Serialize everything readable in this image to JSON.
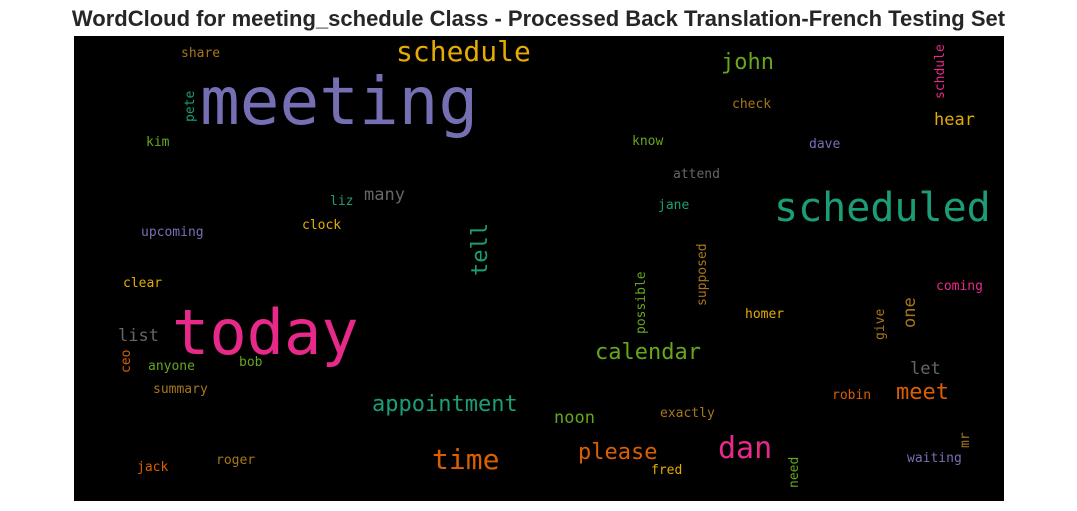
{
  "title": "WordCloud for meeting_schedule Class - Processed Back Translation-French Testing Set",
  "colors": {
    "purple": "#7570b3",
    "pink": "#e7298a",
    "green": "#1b9e77",
    "gold": "#e6ab02",
    "olive": "#66a61e",
    "orange": "#d95f02",
    "brown": "#a6761d",
    "gray": "#666666"
  },
  "words": {
    "meeting": "meeting",
    "today": "today",
    "scheduled": "scheduled",
    "schedule": "schedule",
    "john": "john",
    "calendar": "calendar",
    "appointment": "appointment",
    "time": "time",
    "dan": "dan",
    "please": "please",
    "meet": "meet",
    "tell": "tell",
    "hear": "hear",
    "many": "many",
    "list": "list",
    "noon": "noon",
    "share": "share",
    "pete": "pete",
    "kim": "kim",
    "check": "check",
    "know": "know",
    "dave": "dave",
    "attend": "attend",
    "liz": "liz",
    "jane": "jane",
    "upcoming": "upcoming",
    "clock": "clock",
    "clear": "clear",
    "possible": "possible",
    "supposed": "supposed",
    "one": "one",
    "homer": "homer",
    "give": "give",
    "coming": "coming",
    "let": "let",
    "ceo": "ceo",
    "anyone": "anyone",
    "bob": "bob",
    "summary": "summary",
    "exactly": "exactly",
    "robin": "robin",
    "mr": "mr",
    "jack": "jack",
    "roger": "roger",
    "fred": "fred",
    "need": "need",
    "waiting": "waiting",
    "schdule": "schdule"
  }
}
